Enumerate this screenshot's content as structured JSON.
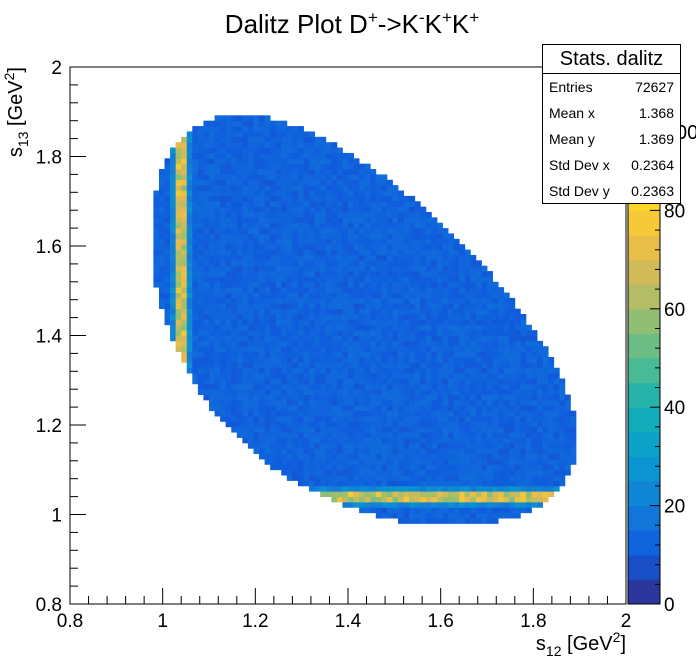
{
  "chart_data": {
    "type": "heatmap",
    "title": {
      "main": "Dalitz Plot D",
      "sup1": "+",
      "arrow": "->K",
      "sup2": "-",
      "k2": "K",
      "sup3": "+",
      "k3": "K",
      "sup4": "+"
    },
    "xlabel": {
      "s": "s",
      "sub": "12",
      "unit": " [GeV",
      "sup": "2",
      "close": "]"
    },
    "ylabel": {
      "s": "s",
      "sub": "13",
      "unit": " [GeV",
      "sup": "2",
      "close": "]"
    },
    "xlim": [
      0.8,
      2.0
    ],
    "ylim": [
      0.8,
      2.0
    ],
    "x_ticks": [
      "0.8",
      "1",
      "1.2",
      "1.4",
      "1.6",
      "1.8",
      "2"
    ],
    "y_ticks": [
      "0.8",
      "1",
      "1.2",
      "1.4",
      "1.6",
      "1.8",
      "2"
    ],
    "z_range": [
      0,
      100
    ],
    "z_ticks": [
      "0",
      "20",
      "40",
      "60",
      "80"
    ],
    "z_partial_label": "00",
    "bins": 100,
    "typical_density": 12,
    "resonance_band_density": 65,
    "resonance_mass_squared": 1.04,
    "allowed_region": {
      "x_min": 0.975,
      "x_max": 1.9,
      "y_min": 0.975,
      "y_max": 1.9
    },
    "stats": {
      "title": "Stats. dalitz",
      "rows": [
        {
          "label": "Entries",
          "value": "72627"
        },
        {
          "label": "Mean x",
          "value": "1.368"
        },
        {
          "label": "Mean y",
          "value": "1.369"
        },
        {
          "label": "Std Dev x",
          "value": "0.2364"
        },
        {
          "label": "Std Dev y",
          "value": "0.2363"
        }
      ]
    }
  }
}
